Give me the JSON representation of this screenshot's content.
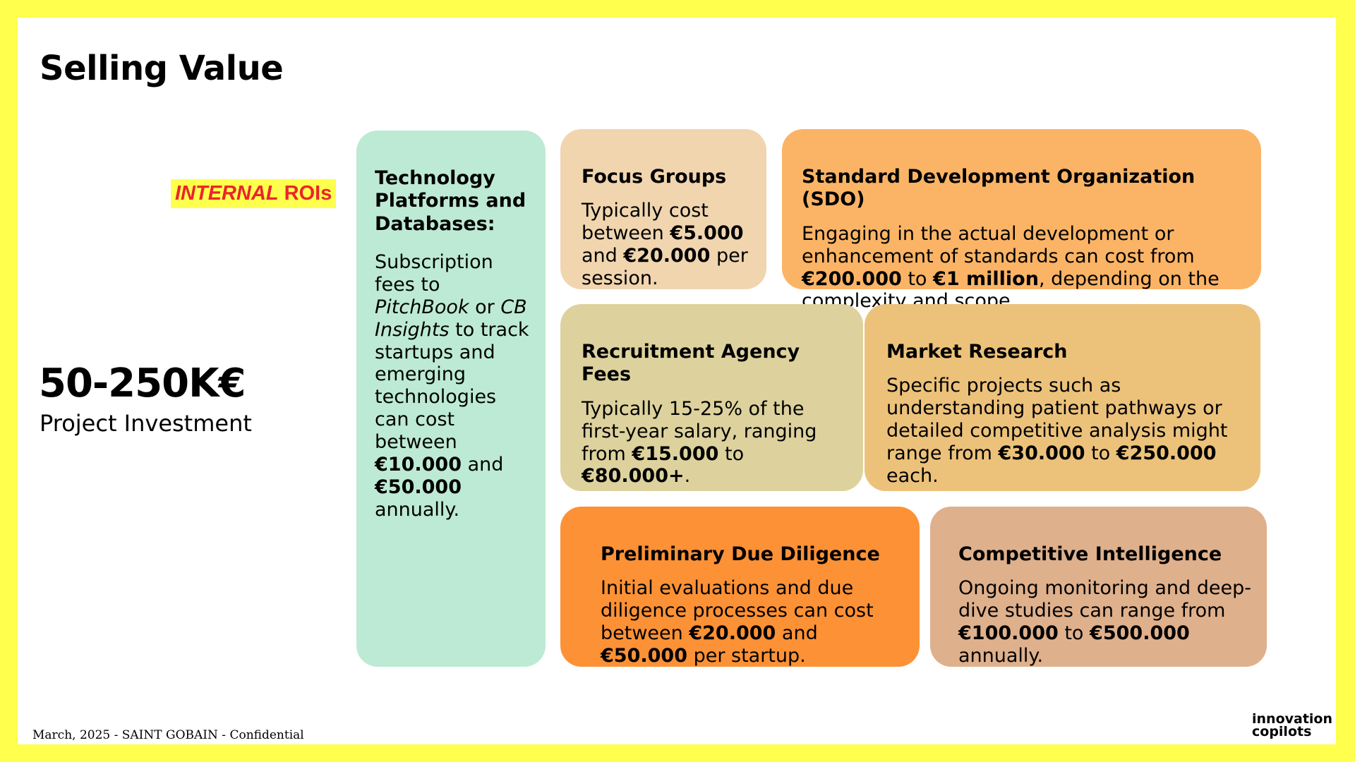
{
  "slide": {
    "title": "Selling Value",
    "roi_tag": {
      "internal": "INTERNAL",
      "rois": "ROIs"
    },
    "investment": {
      "amount": "50-250K€",
      "label": "Project Investment"
    },
    "cards": {
      "tech": {
        "title": "Technology Platforms and Databases:",
        "t1": "Subscription fees to ",
        "e1": "PitchBook",
        "t2": " or ",
        "e2": "CB Insights",
        "t3": " to track startups and emerging technologies can cost between ",
        "b1": "€10.000",
        "t4": " and ",
        "b2": "€50.000",
        "t5": " annually."
      },
      "focus": {
        "title": "Focus Groups",
        "t1": "Typically cost between ",
        "b1": "€5.000",
        "t2": " and ",
        "b2": "€20.000",
        "t3": " per session."
      },
      "sdo": {
        "title": "Standard Development Organization (SDO)",
        "t1": "Engaging in the actual development or enhancement of standards can cost from ",
        "b1": "€200.000",
        "t2": " to ",
        "b2": "€1 million",
        "t3": ", depending on the complexity and scope."
      },
      "recruit": {
        "title": "Recruitment Agency Fees",
        "t1": "Typically 15-25% of the first-year salary, ranging from ",
        "b1": "€15.000",
        "t2": " to ",
        "b2": "€80.000+",
        "t3": "."
      },
      "market": {
        "title": "Market Research",
        "t1": "Specific projects such as understanding patient pathways or detailed competitive analysis might range from ",
        "b1": "€30.000",
        "t2": " to ",
        "b2": "€250.000",
        "t3": " each."
      },
      "due": {
        "title": "Preliminary Due Diligence",
        "t1": "Initial evaluations and due diligence processes can cost between ",
        "b1": "€20.000",
        "t2": " and ",
        "b2": "€50.000",
        "t3": " per startup."
      },
      "comp": {
        "title": "Competitive Intelligence",
        "t1": "Ongoing monitoring and deep-dive studies can range from ",
        "b1": "€100.000",
        "t2": " to ",
        "b2": "€500.000",
        "t3": " annually."
      }
    },
    "footer": "March, 2025 - SAINT GOBAIN - Confidential",
    "brand": {
      "line1": "innovation",
      "line2": "copilots"
    },
    "colors": {
      "frame": "#FFFF4D",
      "tech": "#BDEAD4",
      "focus": "#F0D5AF",
      "sdo": "#FBB466",
      "recruit": "#DDD29D",
      "market": "#ECC27B",
      "due": "#FD9136",
      "comp": "#DFB08C",
      "roi_text": "#E8262A"
    }
  }
}
